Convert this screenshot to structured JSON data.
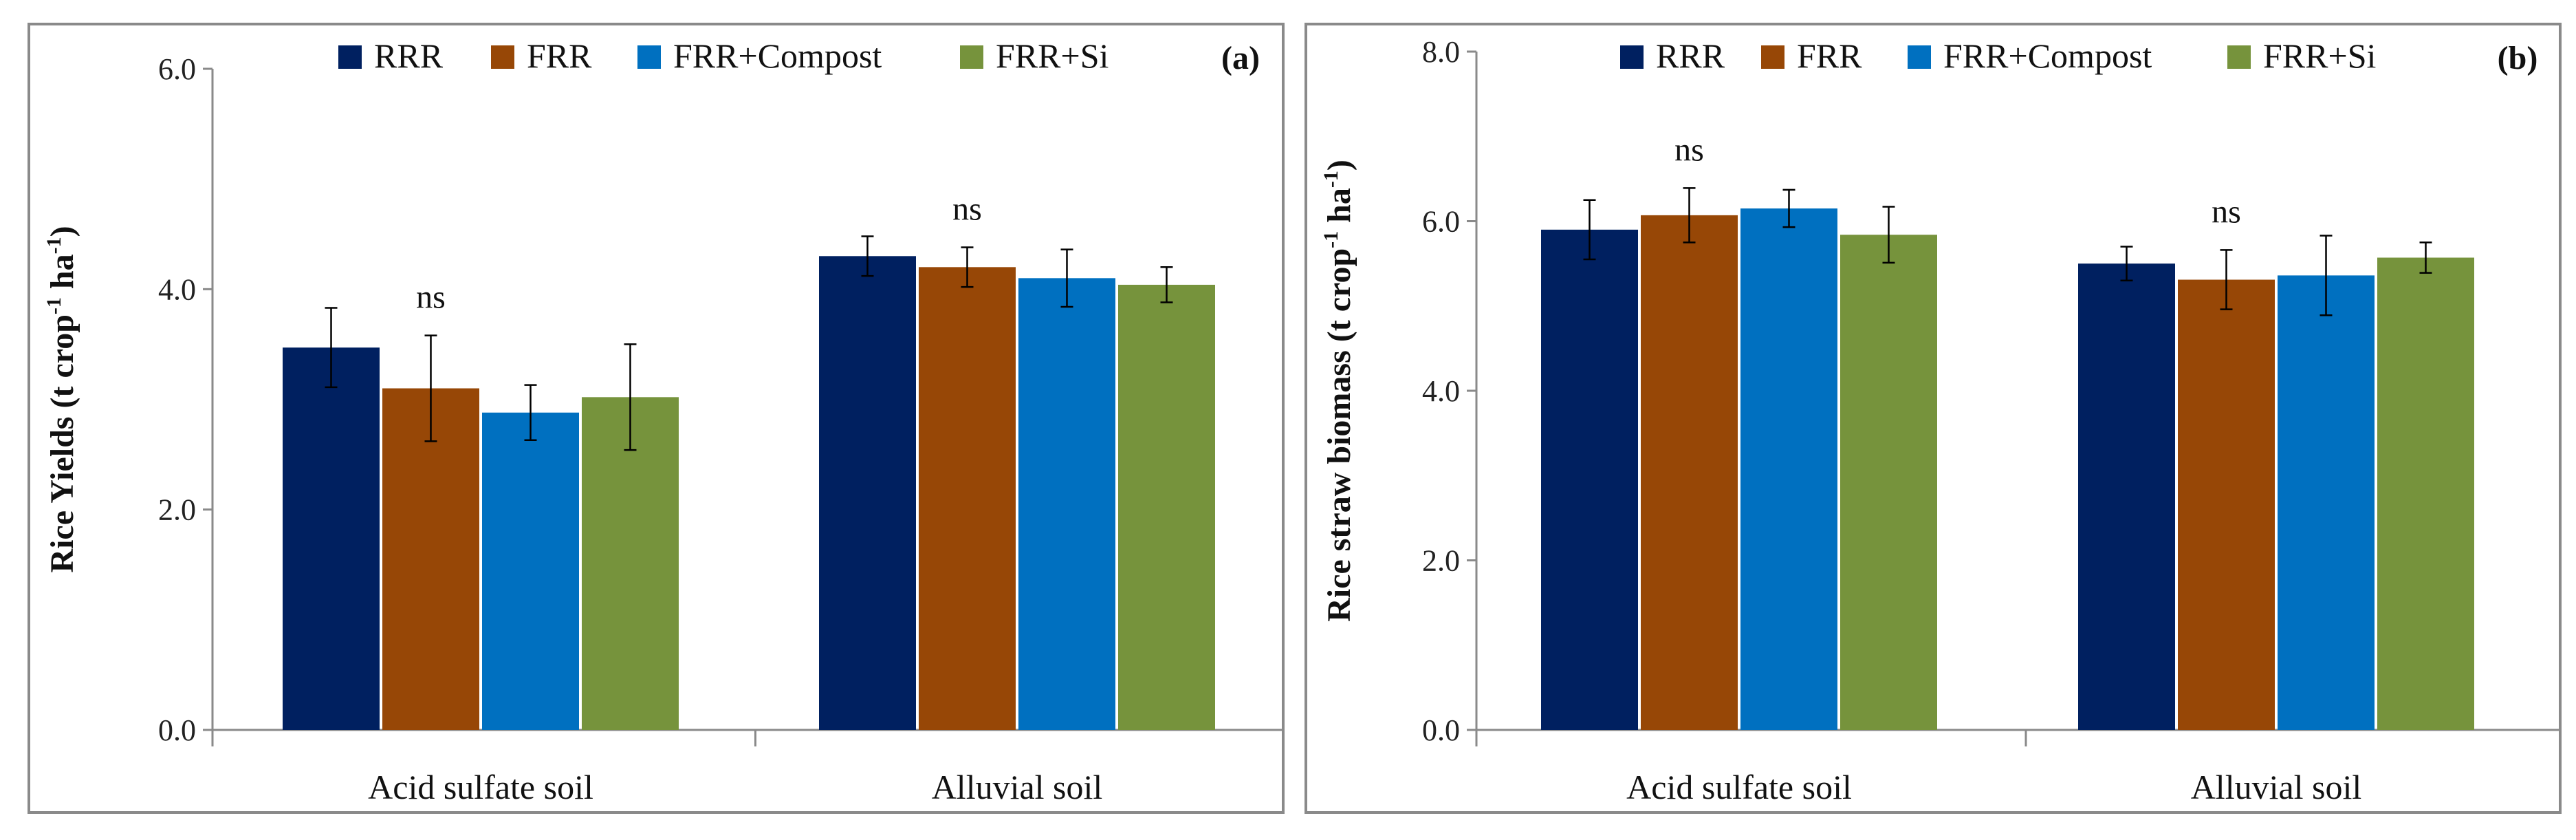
{
  "chart_data": [
    {
      "type": "bar",
      "panel_tag": "(a)",
      "ylabel": "Rice Yields",
      "ylabel_unit": {
        "pre": "(t crop",
        "sup1": "-1",
        "mid": " ha",
        "sup2": "-1",
        "post": ")"
      },
      "xlabel": "",
      "ylim": [
        0,
        6
      ],
      "yticks": [
        "0.0",
        "2.0",
        "4.0",
        "6.0"
      ],
      "ytick_values": [
        0,
        2,
        4,
        6
      ],
      "categories": [
        "Acid sulfate soil",
        "Alluvial soil"
      ],
      "annotations": [
        "ns",
        "ns"
      ],
      "series": [
        {
          "name": "RRR",
          "color": "#002060",
          "values": [
            3.47,
            4.3
          ],
          "errors": [
            0.36,
            0.18
          ]
        },
        {
          "name": "FRR",
          "color": "#974706",
          "values": [
            3.1,
            4.2
          ],
          "errors": [
            0.48,
            0.18
          ]
        },
        {
          "name": "FRR+Compost",
          "color": "#0070C0",
          "values": [
            2.88,
            4.1
          ],
          "errors": [
            0.25,
            0.26
          ]
        },
        {
          "name": "FRR+Si",
          "color": "#76933C",
          "values": [
            3.02,
            4.04
          ],
          "errors": [
            0.48,
            0.16
          ]
        }
      ]
    },
    {
      "type": "bar",
      "panel_tag": "(b)",
      "ylabel": "Rice straw biomass",
      "ylabel_unit": {
        "pre": "(t crop",
        "sup1": "-1",
        "mid": " ha",
        "sup2": "-1",
        "post": ")"
      },
      "xlabel": "",
      "ylim": [
        0,
        8
      ],
      "yticks": [
        "0.0",
        "2.0",
        "4.0",
        "6.0",
        "8.0"
      ],
      "ytick_values": [
        0,
        2,
        4,
        6,
        8
      ],
      "categories": [
        "Acid sulfate soil",
        "Alluvial soil"
      ],
      "annotations": [
        "ns",
        "ns"
      ],
      "series": [
        {
          "name": "RRR",
          "color": "#002060",
          "values": [
            5.9,
            5.5
          ],
          "errors": [
            0.35,
            0.2
          ]
        },
        {
          "name": "FRR",
          "color": "#974706",
          "values": [
            6.07,
            5.31
          ],
          "errors": [
            0.32,
            0.35
          ]
        },
        {
          "name": "FRR+Compost",
          "color": "#0070C0",
          "values": [
            6.15,
            5.36
          ],
          "errors": [
            0.22,
            0.47
          ]
        },
        {
          "name": "FRR+Si",
          "color": "#76933C",
          "values": [
            5.84,
            5.57
          ],
          "errors": [
            0.33,
            0.18
          ]
        }
      ]
    }
  ]
}
